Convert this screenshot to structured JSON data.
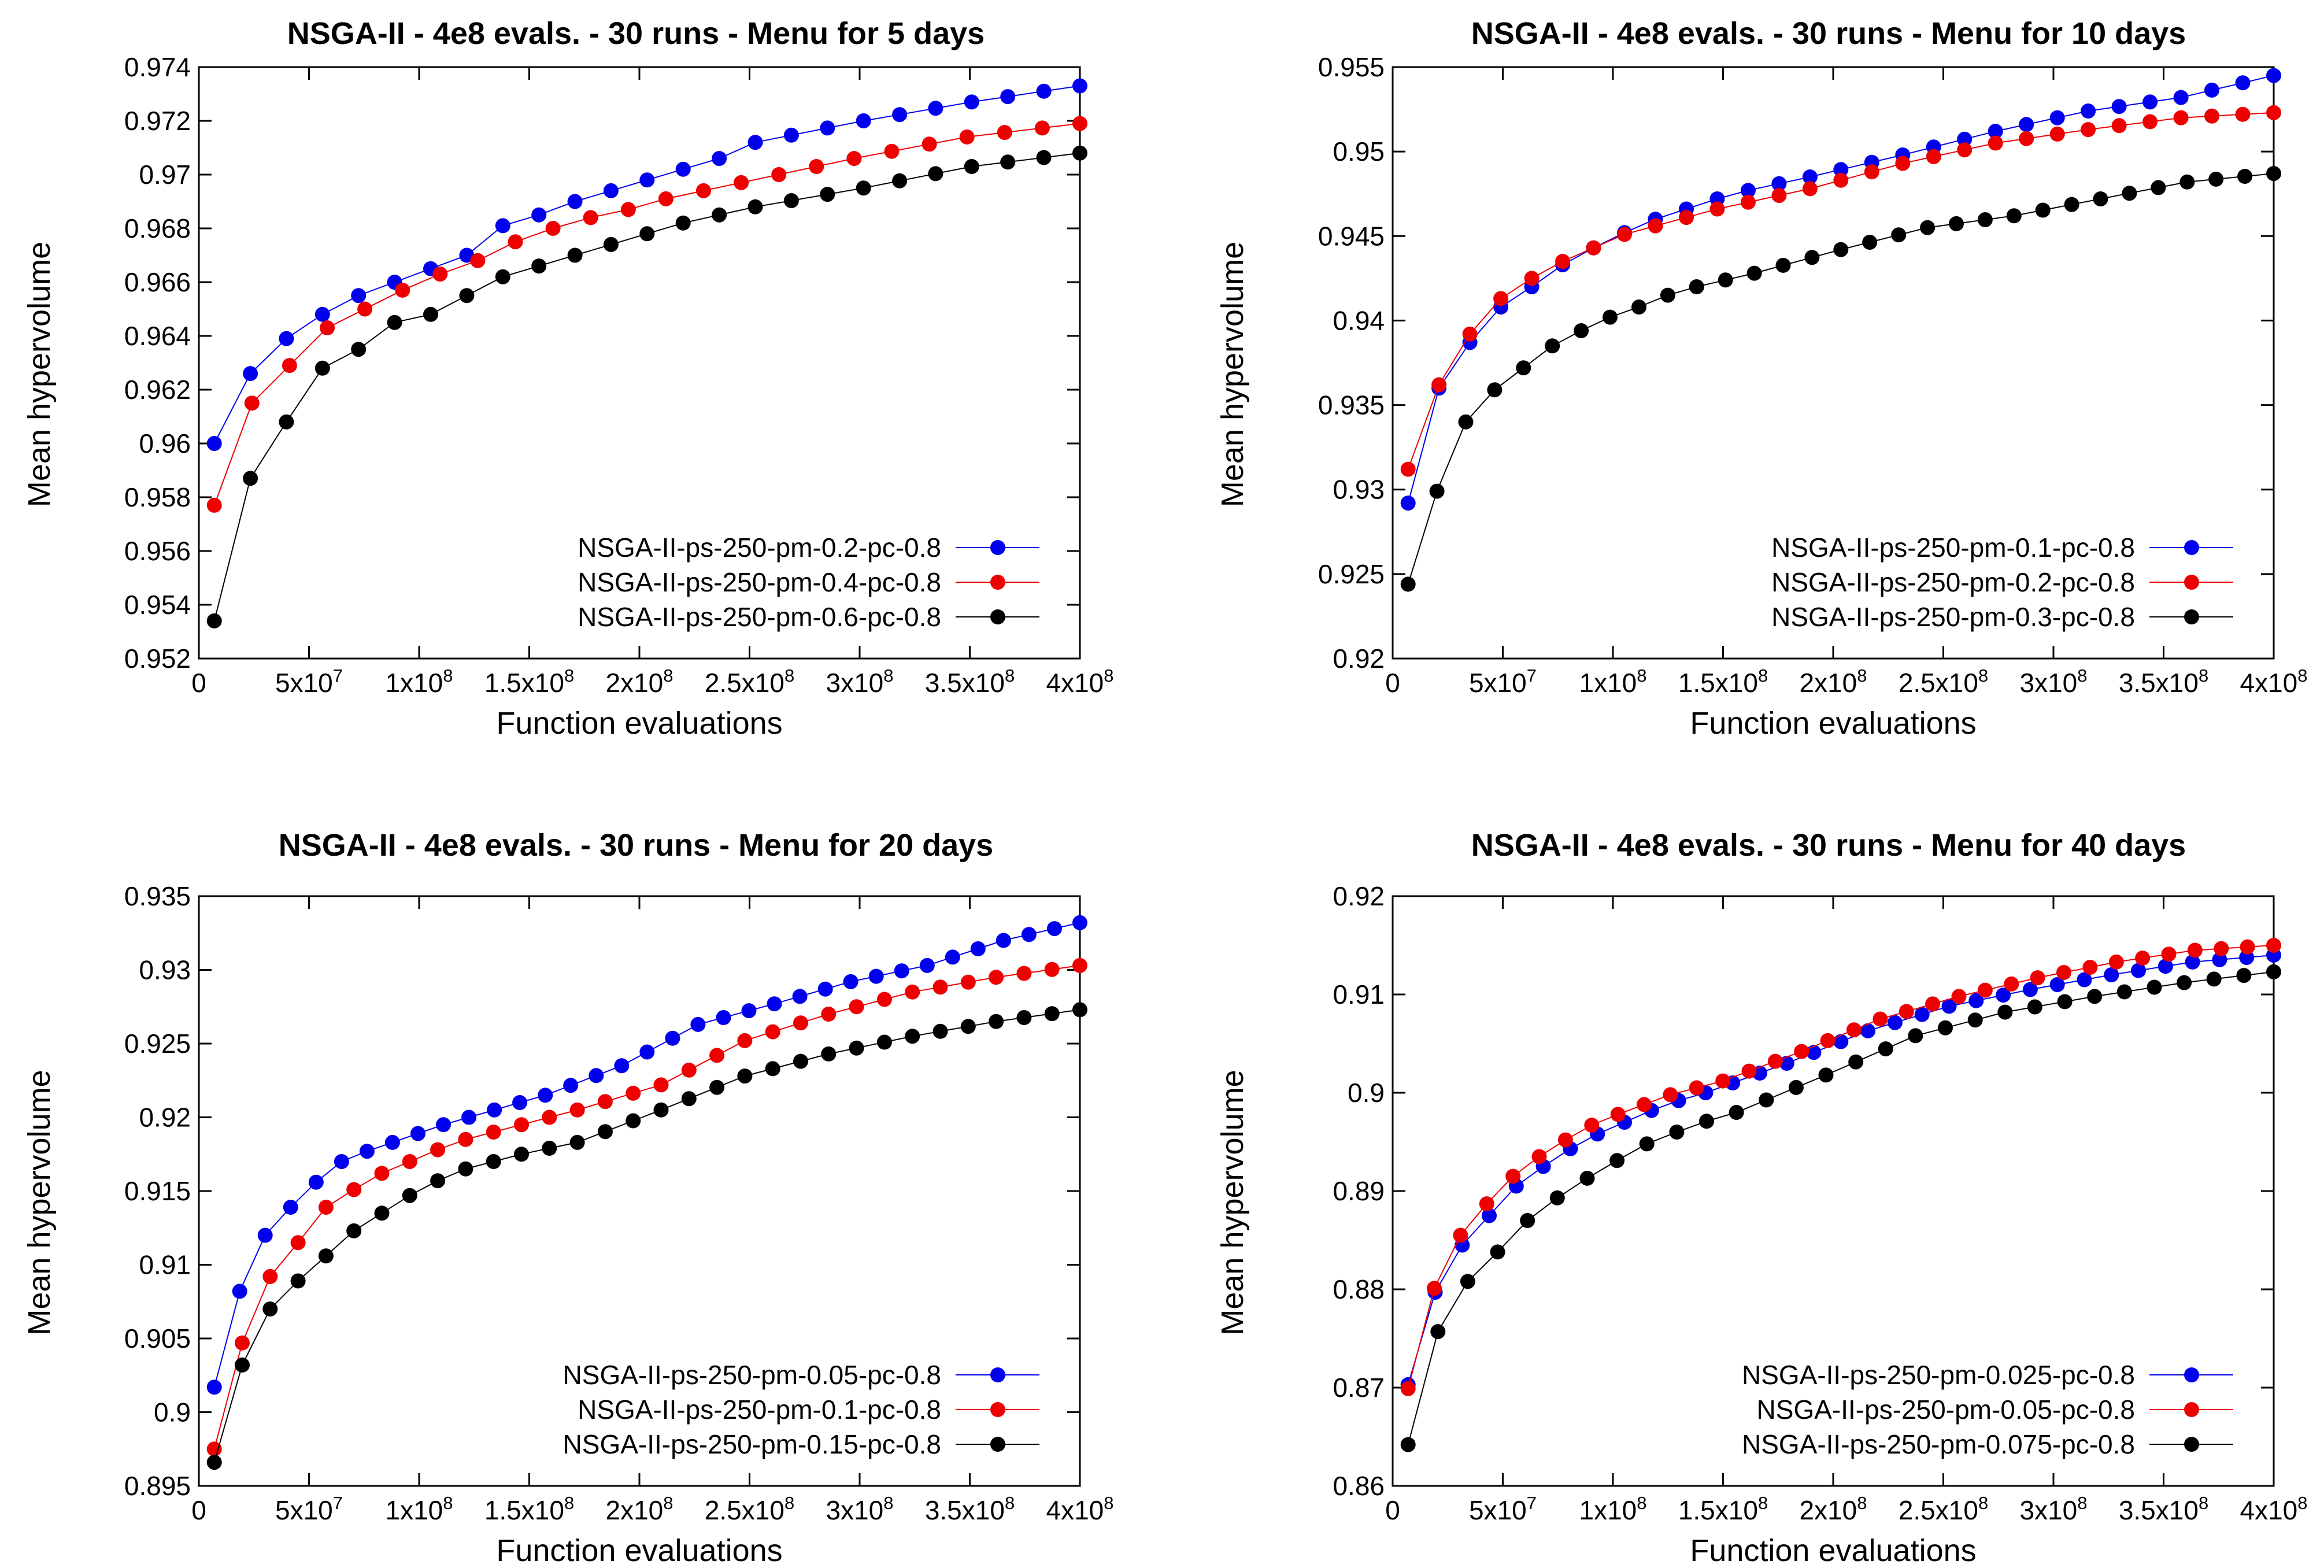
{
  "chart_data": [
    {
      "type": "line",
      "title": "NSGA-II - 4e8 evals. - 30 runs - Menu for 5 days",
      "xlabel": "Function evaluations",
      "ylabel": "Mean hypervolume",
      "xlim": [
        0,
        400000000
      ],
      "ylim": [
        0.952,
        0.974
      ],
      "yticks": [
        "0.952",
        "0.954",
        "0.956",
        "0.958",
        "0.96",
        "0.962",
        "0.964",
        "0.966",
        "0.968",
        "0.97",
        "0.972",
        "0.974"
      ],
      "xticks": [
        {
          "mant": "0",
          "exp": ""
        },
        {
          "mant": "5x10",
          "exp": "7"
        },
        {
          "mant": "1x10",
          "exp": "8"
        },
        {
          "mant": "1.5x10",
          "exp": "8"
        },
        {
          "mant": "2x10",
          "exp": "8"
        },
        {
          "mant": "2.5x10",
          "exp": "8"
        },
        {
          "mant": "3x10",
          "exp": "8"
        },
        {
          "mant": "3.5x10",
          "exp": "8"
        },
        {
          "mant": "4x10",
          "exp": "8"
        }
      ],
      "legend_position": "bottom-right",
      "series": [
        {
          "name": "NSGA-II-ps-250-pm-0.2-pc-0.8",
          "color": "#0000ee",
          "anchors": [
            [
              0.96,
              0.9626,
              0.9639,
              0.9648,
              0.9655,
              0.966,
              0.9665,
              0.967,
              0.9681,
              0.9685,
              0.969,
              0.9694,
              0.9698,
              0.9702,
              0.9706,
              0.9712
            ],
            [
              0.972,
              0.9727,
              0.9733
            ]
          ]
        },
        {
          "name": "NSGA-II-ps-250-pm-0.4-pc-0.8",
          "color": "#ee0000",
          "anchors": [
            [
              0.9577,
              0.9615,
              0.9629,
              0.9643,
              0.965,
              0.9657,
              0.9663,
              0.9668,
              0.9675,
              0.968,
              0.9684,
              0.9687,
              0.9691,
              0.9694,
              0.9697
            ],
            [
              0.9706,
              0.9714,
              0.9719
            ]
          ]
        },
        {
          "name": "NSGA-II-ps-250-pm-0.6-pc-0.8",
          "color": "#000000",
          "anchors": [
            [
              0.9534,
              0.9587,
              0.9608,
              0.9628,
              0.9635,
              0.9645,
              0.9648,
              0.9655,
              0.9662,
              0.9666,
              0.967,
              0.9674,
              0.9678,
              0.9682,
              0.9685,
              0.9688
            ],
            [
              0.9695,
              0.9703,
              0.9708
            ]
          ]
        }
      ]
    },
    {
      "type": "line",
      "title": "NSGA-II - 4e8 evals. - 30 runs - Menu for 10 days",
      "xlabel": "Function evaluations",
      "ylabel": "Mean hypervolume",
      "xlim": [
        0,
        400000000
      ],
      "ylim": [
        0.92,
        0.955
      ],
      "yticks": [
        "0.92",
        "0.925",
        "0.93",
        "0.935",
        "0.94",
        "0.945",
        "0.95",
        "0.955"
      ],
      "xticks": [
        {
          "mant": "0",
          "exp": ""
        },
        {
          "mant": "5x10",
          "exp": "7"
        },
        {
          "mant": "1x10",
          "exp": "8"
        },
        {
          "mant": "1.5x10",
          "exp": "8"
        },
        {
          "mant": "2x10",
          "exp": "8"
        },
        {
          "mant": "2.5x10",
          "exp": "8"
        },
        {
          "mant": "3x10",
          "exp": "8"
        },
        {
          "mant": "3.5x10",
          "exp": "8"
        },
        {
          "mant": "4x10",
          "exp": "8"
        }
      ],
      "legend_position": "bottom-right",
      "series": [
        {
          "name": "NSGA-II-ps-250-pm-0.1-pc-0.8",
          "color": "#0000ee",
          "anchors": [
            [
              0.9292,
              0.936,
              0.9387,
              0.9408,
              0.942,
              0.9433,
              0.9443,
              0.9452,
              0.946,
              0.9466,
              0.9472,
              0.9477,
              0.9481,
              0.9485
            ],
            [
              0.9498,
              0.9512,
              0.9524,
              0.9532,
              0.9545
            ]
          ]
        },
        {
          "name": "NSGA-II-ps-250-pm-0.2-pc-0.8",
          "color": "#ee0000",
          "anchors": [
            [
              0.9312,
              0.9362,
              0.9392,
              0.9413,
              0.9425,
              0.9435,
              0.9443,
              0.9451,
              0.9456,
              0.9461,
              0.9466,
              0.947,
              0.9474,
              0.9478
            ],
            [
              0.9493,
              0.9505,
              0.9513,
              0.952,
              0.9523
            ]
          ]
        },
        {
          "name": "NSGA-II-ps-250-pm-0.3-pc-0.8",
          "color": "#000000",
          "anchors": [
            [
              0.9244,
              0.9299,
              0.934,
              0.9359,
              0.9372,
              0.9385,
              0.9394,
              0.9402,
              0.9408,
              0.9415,
              0.942,
              0.9424,
              0.9428
            ],
            [
              0.9442,
              0.9455,
              0.9462,
              0.9472,
              0.9482,
              0.9487
            ]
          ]
        }
      ]
    },
    {
      "type": "line",
      "title": "NSGA-II - 4e8 evals. - 30 runs - Menu for 20 days",
      "xlabel": "Function evaluations",
      "ylabel": "Mean hypervolume",
      "xlim": [
        0,
        400000000
      ],
      "ylim": [
        0.895,
        0.935
      ],
      "yticks": [
        "0.895",
        "0.9",
        "0.905",
        "0.91",
        "0.915",
        "0.92",
        "0.925",
        "0.93",
        "0.935"
      ],
      "xticks": [
        {
          "mant": "0",
          "exp": ""
        },
        {
          "mant": "5x10",
          "exp": "7"
        },
        {
          "mant": "1x10",
          "exp": "8"
        },
        {
          "mant": "1.5x10",
          "exp": "8"
        },
        {
          "mant": "2x10",
          "exp": "8"
        },
        {
          "mant": "2.5x10",
          "exp": "8"
        },
        {
          "mant": "3x10",
          "exp": "8"
        },
        {
          "mant": "3.5x10",
          "exp": "8"
        },
        {
          "mant": "4x10",
          "exp": "8"
        }
      ],
      "legend_position": "bottom-right",
      "series": [
        {
          "name": "NSGA-II-ps-250-pm-0.05-pc-0.8",
          "color": "#0000ee",
          "anchors": [
            [
              0.9017,
              0.9082,
              0.912,
              0.9139,
              0.9156,
              0.917,
              0.9177,
              0.9183,
              0.9189,
              0.9195,
              0.92,
              0.9205,
              0.921,
              0.9215
            ],
            [
              0.9235,
              0.9263,
              0.9277,
              0.9292,
              0.9303,
              0.932,
              0.9332
            ]
          ]
        },
        {
          "name": "NSGA-II-ps-250-pm-0.1-pc-0.8",
          "color": "#ee0000",
          "anchors": [
            [
              0.8975,
              0.9047,
              0.9092,
              0.9115,
              0.9139,
              0.9151,
              0.9162,
              0.917,
              0.9178,
              0.9185,
              0.919,
              0.9195,
              0.92,
              0.9205
            ],
            [
              0.9222,
              0.9252,
              0.927,
              0.9285,
              0.9295,
              0.9303
            ]
          ]
        },
        {
          "name": "NSGA-II-ps-250-pm-0.15-pc-0.8",
          "color": "#000000",
          "anchors": [
            [
              0.8966,
              0.9032,
              0.907,
              0.9089,
              0.9106,
              0.9123,
              0.9135,
              0.9147,
              0.9157,
              0.9165,
              0.917,
              0.9175,
              0.9179,
              0.9183
            ],
            [
              0.9205,
              0.9228,
              0.9243,
              0.9255,
              0.9265,
              0.9273
            ]
          ]
        }
      ]
    },
    {
      "type": "line",
      "title": "NSGA-II - 4e8 evals. - 30 runs - Menu for 40 days",
      "xlabel": "Function evaluations",
      "ylabel": "Mean hypervolume",
      "xlim": [
        0,
        400000000
      ],
      "ylim": [
        0.86,
        0.92
      ],
      "yticks": [
        "0.86",
        "0.87",
        "0.88",
        "0.89",
        "0.9",
        "0.91",
        "0.92"
      ],
      "xticks": [
        {
          "mant": "0",
          "exp": ""
        },
        {
          "mant": "5x10",
          "exp": "7"
        },
        {
          "mant": "1x10",
          "exp": "8"
        },
        {
          "mant": "1.5x10",
          "exp": "8"
        },
        {
          "mant": "2x10",
          "exp": "8"
        },
        {
          "mant": "2.5x10",
          "exp": "8"
        },
        {
          "mant": "3x10",
          "exp": "8"
        },
        {
          "mant": "3.5x10",
          "exp": "8"
        },
        {
          "mant": "4x10",
          "exp": "8"
        }
      ],
      "legend_position": "bottom-right",
      "series": [
        {
          "name": "NSGA-II-ps-250-pm-0.025-pc-0.8",
          "color": "#0000ee",
          "anchors": [
            [
              0.8703,
              0.8797,
              0.8845,
              0.8875,
              0.8905,
              0.8925,
              0.8943,
              0.8958,
              0.897,
              0.8982,
              0.8992,
              0.9
            ],
            [
              0.903,
              0.9063,
              0.9088,
              0.9105,
              0.912,
              0.9133,
              0.914
            ]
          ]
        },
        {
          "name": "NSGA-II-ps-250-pm-0.05-pc-0.8",
          "color": "#ee0000",
          "anchors": [
            [
              0.8699,
              0.8801,
              0.8855,
              0.8887,
              0.8915,
              0.8935,
              0.8952,
              0.8967,
              0.8978,
              0.8988,
              0.8998,
              0.9005,
              0.9012
            ],
            [
              0.9042,
              0.9075,
              0.9098,
              0.9117,
              0.9133,
              0.9145,
              0.915
            ]
          ]
        },
        {
          "name": "NSGA-II-ps-250-pm-0.075-pc-0.8",
          "color": "#000000",
          "anchors": [
            [
              0.8642,
              0.8757,
              0.8808,
              0.8838,
              0.887,
              0.8893,
              0.8913,
              0.8931,
              0.8948,
              0.896,
              0.8971,
              0.898
            ],
            [
              0.9018,
              0.9058,
              0.9082,
              0.9098,
              0.9112,
              0.9123
            ]
          ]
        }
      ]
    }
  ]
}
